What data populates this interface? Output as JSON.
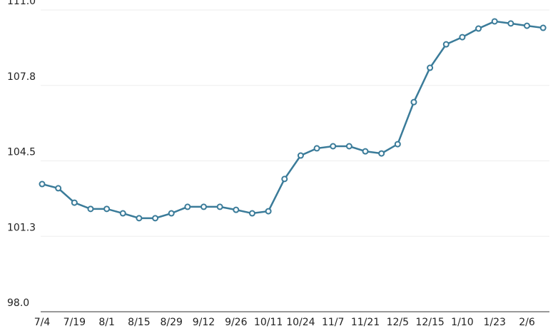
{
  "chart_data": {
    "type": "line",
    "categories": [
      "7/4",
      null,
      "7/19",
      null,
      "8/1",
      null,
      "8/15",
      null,
      "8/29",
      null,
      "9/12",
      null,
      "9/26",
      null,
      "10/11",
      null,
      "10/24",
      null,
      "11/7",
      null,
      "11/21",
      null,
      "12/5",
      null,
      "12/15",
      null,
      "1/10",
      null,
      "1/23",
      null,
      "2/6",
      null
    ],
    "series": [
      {
        "color": "#3a7b99",
        "values": [
          103.5,
          103.32,
          102.7,
          102.43,
          102.43,
          102.24,
          102.03,
          102.03,
          102.24,
          102.52,
          102.52,
          102.52,
          102.39,
          102.24,
          102.33,
          103.72,
          104.73,
          105.04,
          105.13,
          105.13,
          104.91,
          104.82,
          105.22,
          107.03,
          108.51,
          109.52,
          109.83,
          110.2,
          110.51,
          110.42,
          110.32,
          110.23
        ]
      }
    ],
    "ylim": [
      98,
      111
    ],
    "yticks": [
      {
        "value": 98,
        "label": "98.0"
      },
      {
        "value": 101.25,
        "label": "101.3"
      },
      104.5,
      {
        "value": 107.75,
        "label": "107.8"
      },
      {
        "value": 111,
        "label": "111.0"
      }
    ],
    "grid": true
  }
}
